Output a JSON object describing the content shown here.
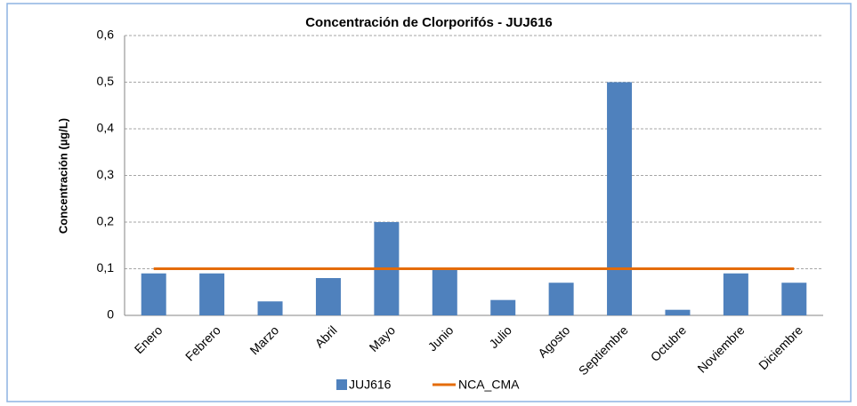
{
  "chart_data": {
    "type": "bar",
    "title": "Concentración de Clorporifós - JUJ616",
    "y_label": "Concentración (µg/L)",
    "categories": [
      "Enero",
      "Febrero",
      "Marzo",
      "Abril",
      "Mayo",
      "Junio",
      "Julio",
      "Agosto",
      "Septiembre",
      "Octubre",
      "Noviembre",
      "Diciembre"
    ],
    "series": [
      {
        "name": "JUJ616",
        "type": "bar",
        "color": "#4f81bd",
        "values": [
          0.09,
          0.09,
          0.03,
          0.08,
          0.2,
          0.1,
          0.033,
          0.07,
          0.5,
          0.012,
          0.09,
          0.07
        ]
      },
      {
        "name": "NCA_CMA",
        "type": "line",
        "color": "#e46c0a",
        "values": [
          0.1,
          0.1,
          0.1,
          0.1,
          0.1,
          0.1,
          0.1,
          0.1,
          0.1,
          0.1,
          0.1,
          0.1
        ]
      }
    ],
    "ylim": [
      0,
      0.6
    ],
    "yticks": [
      0,
      {
        "value": 0.1,
        "label": "0,1"
      },
      {
        "value": 0.2,
        "label": "0,2"
      },
      {
        "value": 0.3,
        "label": "0,3"
      },
      {
        "value": 0.4,
        "label": "0,4"
      },
      {
        "value": 0.5,
        "label": "0,5"
      },
      {
        "value": 0.6,
        "label": "0,6"
      }
    ],
    "grid": true,
    "legend": "bottom"
  }
}
